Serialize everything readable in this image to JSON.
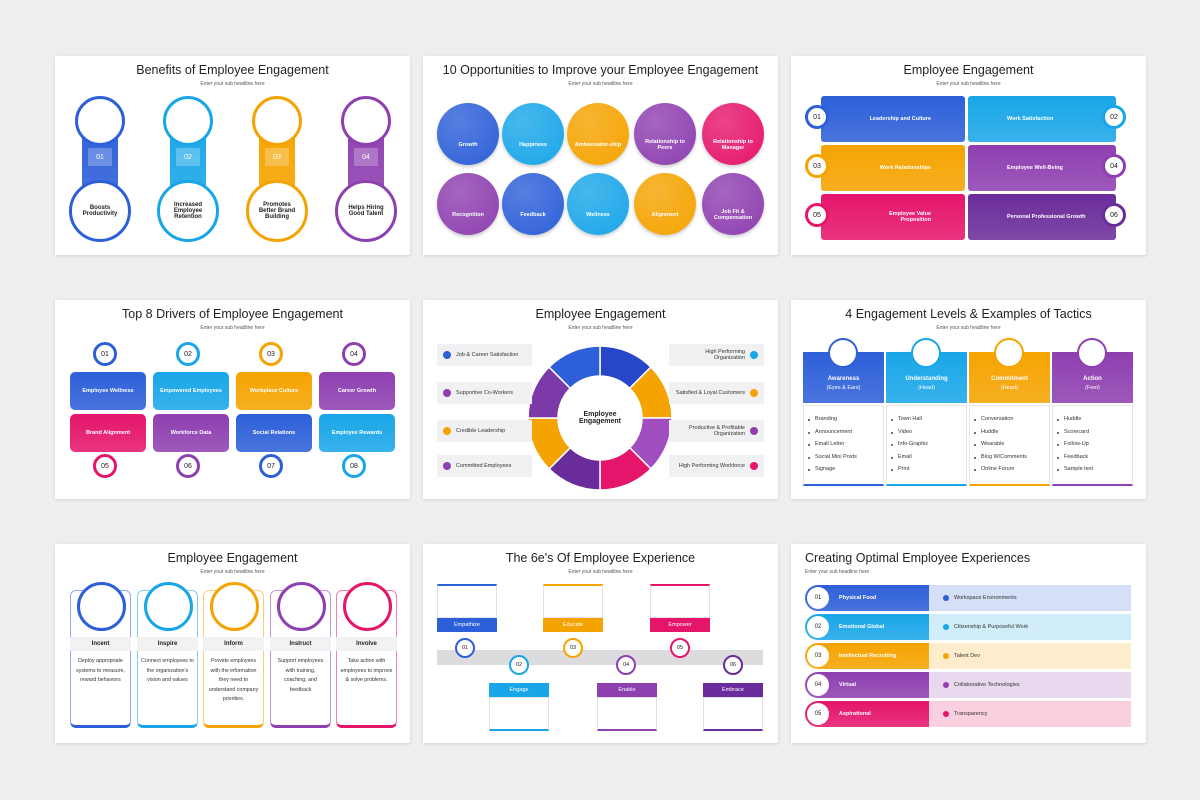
{
  "slides": [
    {
      "title": "Benefits of Employee Engagement",
      "subtitle": "Enter your sub headline here",
      "items": [
        {
          "number": "01",
          "label": "Boosts Productivity"
        },
        {
          "number": "02",
          "label": "Increased Employee Retention"
        },
        {
          "number": "03",
          "label": "Promotes Better Brand Building"
        },
        {
          "number": "04",
          "label": "Helps Hiring Good Talent"
        }
      ]
    },
    {
      "title": "10 Opportunities to Improve your Employee Engagement",
      "subtitle": "Enter your sub headline here",
      "items": [
        "Growth",
        "Happiness",
        "Ambassador-ship",
        "Relationship to Peers",
        "Relationship to Manager",
        "Recognition",
        "Feedback",
        "Wellness",
        "Alignment",
        "Job Fit & Compensation"
      ]
    },
    {
      "title": "Employee Engagement",
      "subtitle": "Enter your sub headline here",
      "items": [
        {
          "number": "01",
          "label": "Leadership and Culture"
        },
        {
          "number": "02",
          "label": "Work Satisfaction"
        },
        {
          "number": "03",
          "label": "Work Relationships"
        },
        {
          "number": "04",
          "label": "Employee Well-Being"
        },
        {
          "number": "05",
          "label": "Employee Value Proposition"
        },
        {
          "number": "06",
          "label": "Personal Professional Growth"
        }
      ]
    },
    {
      "title": "Top 8 Drivers of Employee Engagement",
      "subtitle": "Enter your sub headline here",
      "items": [
        {
          "number": "01",
          "label": "Employee Wellness"
        },
        {
          "number": "02",
          "label": "Empowered Employees"
        },
        {
          "number": "03",
          "label": "Workplace Culture"
        },
        {
          "number": "04",
          "label": "Career Growth"
        },
        {
          "number": "05",
          "label": "Brand Alignment"
        },
        {
          "number": "06",
          "label": "Workforce Data"
        },
        {
          "number": "07",
          "label": "Social Relations"
        },
        {
          "number": "08",
          "label": "Employee Rewards"
        }
      ]
    },
    {
      "title": "Employee Engagement",
      "subtitle": "Enter your sub headline here",
      "center": "Employee Engagement",
      "left": [
        "Job & Career Satisfaction",
        "Supportive Co-Workers",
        "Credible Leadership",
        "Committed Employees"
      ],
      "right": [
        "High Performing Organization",
        "Satisfied & Loyal Customers",
        "Productive & Profitable Organization",
        "High Performing Workforce"
      ]
    },
    {
      "title": "4 Engagement Levels & Examples of Tactics",
      "subtitle": "Enter your sub headline here",
      "levels": [
        {
          "label": "Awareness",
          "sub": "(Eyes & Ears)",
          "tactics": [
            "Branding",
            "Announcement",
            "Email Letter",
            "Social Mini Posts",
            "Signage"
          ]
        },
        {
          "label": "Understanding",
          "sub": "(Head)",
          "tactics": [
            "Town Hall",
            "Video",
            "Info-Graphic",
            "Email",
            "Print"
          ]
        },
        {
          "label": "Commitment",
          "sub": "(Heart)",
          "tactics": [
            "Conversation",
            "Huddle",
            "Wearable",
            "Blog W/Comments",
            "Online Forum"
          ]
        },
        {
          "label": "Action",
          "sub": "(Feet)",
          "tactics": [
            "Huddle",
            "Scorecard",
            "Follow-Up",
            "Feedback",
            "Sample text"
          ]
        }
      ]
    },
    {
      "title": "Employee Engagement",
      "subtitle": "Enter your sub headline here",
      "items": [
        {
          "label": "Incent",
          "text": "Deploy appropriate systems to measure, reward behaviors"
        },
        {
          "label": "Inspire",
          "text": "Connect employees to the organization's vision and values"
        },
        {
          "label": "Inform",
          "text": "Provide employees with the information they need to understand company priorities."
        },
        {
          "label": "Instruct",
          "text": "Support employees with training, coaching, and feedback"
        },
        {
          "label": "Involve",
          "text": "Take action with employees to improve & solve problems."
        }
      ]
    },
    {
      "title": "The 6e's Of Employee Experience",
      "subtitle": "Enter your sub headline here",
      "items": [
        {
          "number": "01",
          "label": "Empathize"
        },
        {
          "number": "02",
          "label": "Engage"
        },
        {
          "number": "03",
          "label": "Educate"
        },
        {
          "number": "04",
          "label": "Enable"
        },
        {
          "number": "05",
          "label": "Empower"
        },
        {
          "number": "06",
          "label": "Embrace"
        }
      ]
    },
    {
      "title": "Creating Optimal Employee Experiences",
      "subtitle": "Enter your sub headline here",
      "items": [
        {
          "number": "01",
          "label": "Physical Food",
          "detail": "Workspace Environments"
        },
        {
          "number": "02",
          "label": "Emotional Global",
          "detail": "Citizenship & Purposeful Work"
        },
        {
          "number": "03",
          "label": "Intellectual Recruiting",
          "detail": "Talent Dev"
        },
        {
          "number": "04",
          "label": "Virtual",
          "detail": "Collaborative Technologies"
        },
        {
          "number": "05",
          "label": "Aspirational",
          "detail": "Transparency"
        }
      ]
    }
  ]
}
